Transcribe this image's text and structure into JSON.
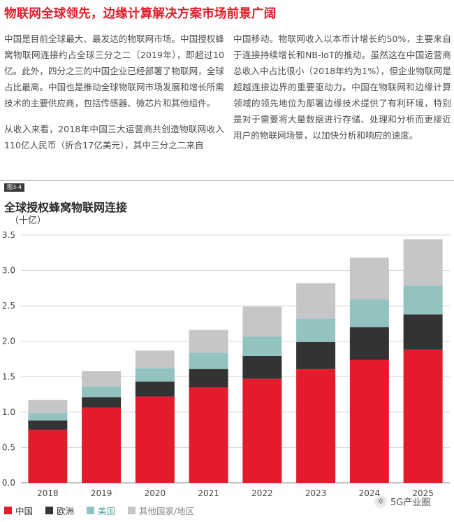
{
  "heading": "物联网全球领先，边缘计算解决方案市场前景广阔",
  "left_paragraphs": [
    "中国是目前全球最大、最发达的物联网市场。中国授权蜂窝物联网连接约占全球三分之二（2019年），即超过10亿。此外，四分之三的中国企业已经部署了物联网，全球占比最高。中国也是推动全球物联网市场发展和增长所需技术的主要供应商，包括传感器、微芯片和其他组件。",
    "从收入来看，2018年中国三大运营商共创造物联网收入110亿人民币（折合17亿美元），其中三分之二来自"
  ],
  "right_paragraphs": [
    "中国移动。物联网收入以本币计增长约50%，主要来自于连接持续增长和NB-IoT的推动。虽然这在中国运营商总收入中占比很小（2018年约为1%），但企业物联网是超越连接边界的重要驱动力。中国在物联网和边缘计算领域的领先地位为部署边缘技术提供了有利环境，特别是对于需要将大量数据进行存储、处理和分析而更接近用户的物联网场景，以加快分析和响应的速度。"
  ],
  "figure_tag": "图3-4",
  "chart_data": {
    "type": "bar",
    "stacked": true,
    "title": "全球授权蜂窝物联网连接",
    "unit": "（十亿）",
    "categories": [
      "2018",
      "2019",
      "2020",
      "2021",
      "2022",
      "2023",
      "2024",
      "2025"
    ],
    "y_ticks": [
      "0.0",
      "0.5",
      "1.0",
      "1.5",
      "2.0",
      "2.5",
      "3.0",
      "3.5"
    ],
    "ylim": [
      0,
      3.5
    ],
    "grid": true,
    "legend_position": "bottom-left",
    "series": [
      {
        "name": "中国",
        "color": "#e31b2b",
        "values": [
          0.75,
          1.06,
          1.22,
          1.35,
          1.47,
          1.61,
          1.74,
          1.88
        ]
      },
      {
        "name": "欧洲",
        "color": "#333333",
        "values": [
          0.13,
          0.15,
          0.21,
          0.26,
          0.32,
          0.38,
          0.46,
          0.5
        ]
      },
      {
        "name": "美国",
        "color": "#93c3c1",
        "values": [
          0.11,
          0.15,
          0.19,
          0.23,
          0.28,
          0.33,
          0.39,
          0.41
        ]
      },
      {
        "name": "其他国家/地区",
        "color": "#c6c6c6",
        "values": [
          0.18,
          0.22,
          0.25,
          0.32,
          0.42,
          0.5,
          0.59,
          0.65
        ]
      }
    ]
  },
  "watermark": {
    "text": "5G产业圈",
    "icon": "wechat-icon"
  }
}
